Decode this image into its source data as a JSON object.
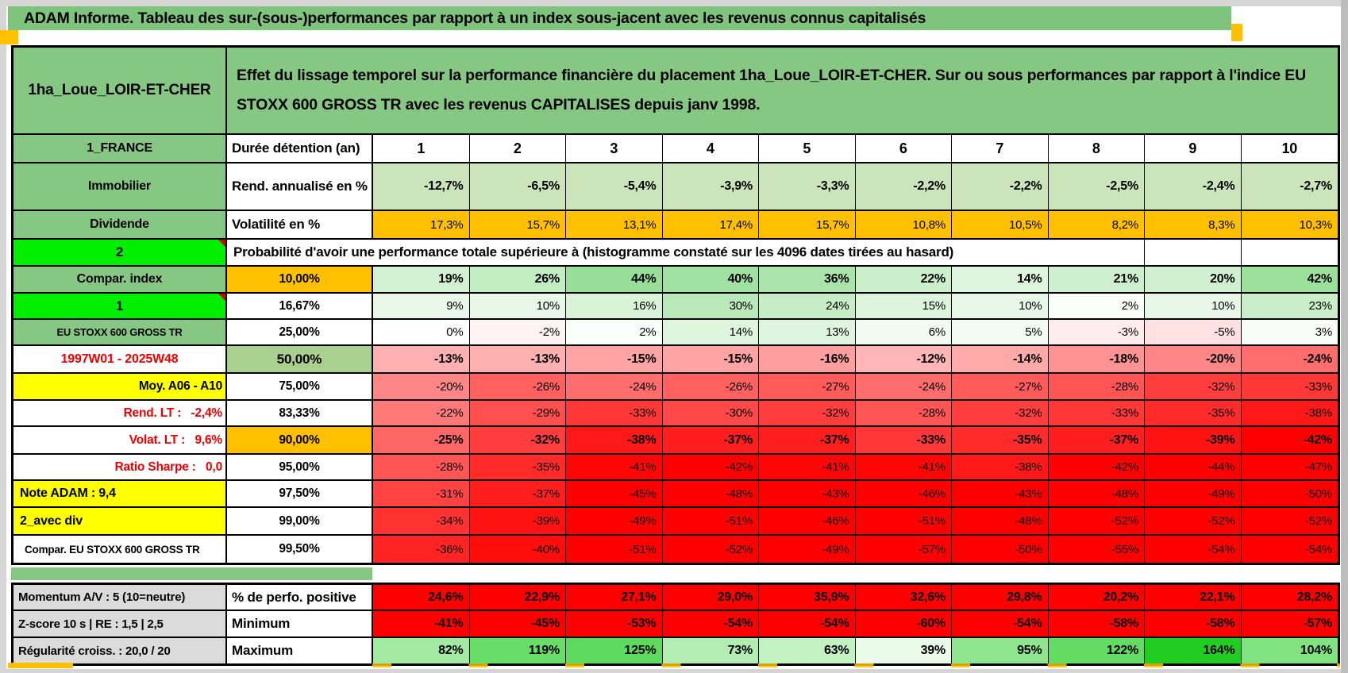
{
  "banner": {
    "title": "ADAM Informe. Tableau des sur-(sous-)performances par rapport à un index sous-jacent avec les revenus connus capitalisés"
  },
  "sheet": {
    "corner_title": "1ha_Loue_LOIR-ET-CHER",
    "description": "Effet du lissage temporel sur la performance financière du placement 1ha_Loue_LOIR-ET-CHER. Sur ou sous performances par rapport à l'indice EU STOXX 600 GROSS TR avec les revenus CAPITALISES depuis janv 1998."
  },
  "colors": {
    "band": "#7EC47D",
    "cellgreen": "#86C883",
    "bright": "#00EE00",
    "orange": "#FFC000",
    "yellow": "#FFFF00",
    "green50": "#A9D08E",
    "palegreen": "#CBE4BA",
    "graycell": "#DBDBDB",
    "red": "#FF0000",
    "redtext": "#EE0000",
    "frame": "#D5D5D5",
    "scroll": "#BDBDBD"
  },
  "table": {
    "rows": [
      {
        "left": {
          "text": "1_FRANCE",
          "style": "green"
        },
        "mid": {
          "text": "Durée détention (an)",
          "style": "wl"
        },
        "mode": "none",
        "bold": true,
        "center": true,
        "values": [
          "1",
          "2",
          "3",
          "4",
          "5",
          "6",
          "7",
          "8",
          "9",
          "10"
        ]
      },
      {
        "left": {
          "text": "Immobilier",
          "style": "green"
        },
        "mid": {
          "text": "Rend. annualisé en %",
          "style": "wl"
        },
        "mode": "palegreen",
        "bold": true,
        "values": [
          "-12,7%",
          "-6,5%",
          "-5,4%",
          "-3,9%",
          "-3,3%",
          "-2,2%",
          "-2,2%",
          "-2,5%",
          "-2,4%",
          "-2,7%"
        ]
      },
      {
        "left": {
          "text": "Dividende",
          "style": "green"
        },
        "mid": {
          "text": "Volatilité en %",
          "style": "wl"
        },
        "mode": "orange",
        "values": [
          "17,3%",
          "15,7%",
          "13,1%",
          "17,4%",
          "15,7%",
          "10,8%",
          "10,5%",
          "8,2%",
          "8,3%",
          "10,3%"
        ]
      },
      {
        "left": {
          "text": "2",
          "style": "bright",
          "triangle": true
        },
        "merged": {
          "text": "Probabilité d'avoir une performance totale supérieure à (histogramme constaté sur les 4096 dates tirées au hasard)",
          "empty": 2
        }
      },
      {
        "left": {
          "text": "Compar. index",
          "style": "green"
        },
        "mid": {
          "text": "10,00%",
          "style": "oc"
        },
        "mode": "heat",
        "bold": true,
        "values": [
          "19%",
          "26%",
          "44%",
          "40%",
          "36%",
          "22%",
          "14%",
          "21%",
          "20%",
          "42%"
        ]
      },
      {
        "left": {
          "text": "1",
          "style": "bright",
          "triangle": true
        },
        "mid": {
          "text": "16,67%",
          "style": "wc"
        },
        "mode": "heat",
        "values": [
          "9%",
          "10%",
          "16%",
          "30%",
          "24%",
          "15%",
          "10%",
          "2%",
          "10%",
          "23%"
        ]
      },
      {
        "left": {
          "text": "EU STOXX 600 GROSS TR",
          "style": "green-small"
        },
        "mid": {
          "text": "25,00%",
          "style": "wc"
        },
        "mode": "heat",
        "values": [
          "0%",
          "-2%",
          "2%",
          "14%",
          "13%",
          "6%",
          "5%",
          "-3%",
          "-5%",
          "3%"
        ]
      },
      {
        "left": {
          "text": "1997W01 - 2025W48",
          "style": "red-center"
        },
        "mid": {
          "text": "50,00%",
          "style": "gc"
        },
        "mode": "heat",
        "bold": true,
        "values": [
          "-13%",
          "-13%",
          "-15%",
          "-15%",
          "-16%",
          "-12%",
          "-14%",
          "-18%",
          "-20%",
          "-24%"
        ]
      },
      {
        "left": {
          "text": "Moy. A06 - A10",
          "style": "yellow-right"
        },
        "mid": {
          "text": "75,00%",
          "style": "wc"
        },
        "mode": "heat",
        "values": [
          "-20%",
          "-26%",
          "-24%",
          "-26%",
          "-27%",
          "-24%",
          "-27%",
          "-28%",
          "-32%",
          "-33%"
        ]
      },
      {
        "left": {
          "text": "Rend. LT :   -2,4%",
          "style": "red-right"
        },
        "mid": {
          "text": "83,33%",
          "style": "wc"
        },
        "mode": "heat",
        "values": [
          "-22%",
          "-29%",
          "-33%",
          "-30%",
          "-32%",
          "-28%",
          "-32%",
          "-33%",
          "-35%",
          "-38%"
        ]
      },
      {
        "left": {
          "text": "Volat. LT :   9,6%",
          "style": "red-right"
        },
        "mid": {
          "text": "90,00%",
          "style": "oc"
        },
        "mode": "heat",
        "bold": true,
        "values": [
          "-25%",
          "-32%",
          "-38%",
          "-37%",
          "-37%",
          "-33%",
          "-35%",
          "-37%",
          "-39%",
          "-42%"
        ]
      },
      {
        "left": {
          "text": "Ratio Sharpe :   0,0",
          "style": "red-right"
        },
        "mid": {
          "text": "95,00%",
          "style": "wc"
        },
        "mode": "heat",
        "values": [
          "-28%",
          "-35%",
          "-41%",
          "-42%",
          "-41%",
          "-41%",
          "-38%",
          "-42%",
          "-44%",
          "-47%"
        ]
      },
      {
        "left": {
          "text": "Note ADAM : 9,4",
          "style": "yellow-left"
        },
        "mid": {
          "text": "97,50%",
          "style": "wc"
        },
        "mode": "heat",
        "values": [
          "-31%",
          "-37%",
          "-45%",
          "-48%",
          "-43%",
          "-46%",
          "-43%",
          "-48%",
          "-49%",
          "-50%"
        ]
      },
      {
        "left": {
          "text": "2_avec div",
          "style": "yellow-left"
        },
        "mid": {
          "text": "99,00%",
          "style": "wc"
        },
        "mode": "heat",
        "values": [
          "-34%",
          "-39%",
          "-49%",
          "-51%",
          "-46%",
          "-51%",
          "-48%",
          "-52%",
          "-52%",
          "-52%"
        ]
      },
      {
        "left": {
          "text": "Compar. EU STOXX 600 GROSS TR",
          "style": "white-left-sm"
        },
        "mid": {
          "text": "99,50%",
          "style": "wc"
        },
        "mode": "heat",
        "values": [
          "-36%",
          "-40%",
          "-51%",
          "-52%",
          "-49%",
          "-57%",
          "-50%",
          "-55%",
          "-54%",
          "-54%"
        ]
      }
    ]
  },
  "bottom": {
    "rows": [
      {
        "left": {
          "text": "Momentum A/V : 5 (10=neutre)",
          "style": "gray-left"
        },
        "mid": {
          "text": "% de perfo. positive",
          "style": "wl"
        },
        "mode": "red",
        "bold": true,
        "values": [
          "24,6%",
          "22,9%",
          "27,1%",
          "29,0%",
          "35,9%",
          "32,6%",
          "29,8%",
          "20,2%",
          "22,1%",
          "28,2%"
        ]
      },
      {
        "left": {
          "text": "Z-score 10 s | RE : 1,5 | 2,5",
          "style": "gray-left"
        },
        "mid": {
          "text": "Minimum",
          "style": "wl"
        },
        "mode": "red",
        "bold": true,
        "values": [
          "-41%",
          "-45%",
          "-53%",
          "-54%",
          "-54%",
          "-60%",
          "-54%",
          "-58%",
          "-58%",
          "-57%"
        ]
      },
      {
        "left": {
          "text": "Régularité croiss. : 20,0 / 20",
          "style": "gray-left"
        },
        "mid": {
          "text": "Maximum",
          "style": "wl"
        },
        "mode": "maxgreen",
        "bold": true,
        "values": [
          "82%",
          "119%",
          "125%",
          "73%",
          "63%",
          "39%",
          "95%",
          "122%",
          "164%",
          "104%"
        ]
      }
    ]
  }
}
